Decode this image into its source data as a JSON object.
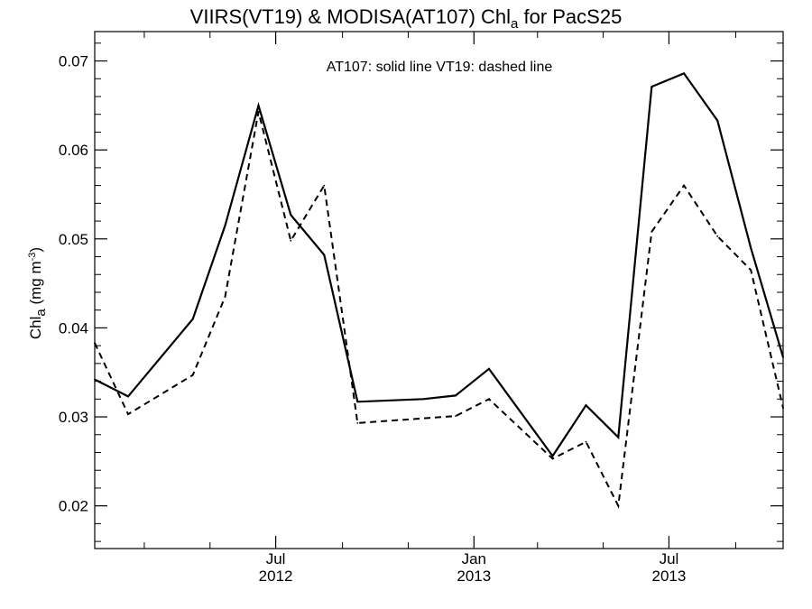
{
  "chart_data": {
    "type": "line",
    "title": "VIIRS(VT19) & MODISA(AT107)  Chl",
    "title_subscript": "a",
    "title_suffix": " for PacS25",
    "ylabel_main": "Chl",
    "ylabel_subscript": "a",
    "ylabel_units": " (mg m",
    "ylabel_superscript": "-3",
    "ylabel_close": ")",
    "annotation": "AT107: solid line   VT19: dashed line",
    "ylim": [
      0.0152,
      0.0733
    ],
    "yticks": [
      "0.02",
      "0.03",
      "0.04",
      "0.05",
      "0.06",
      "0.07"
    ],
    "xlim": [
      "2012-01-15",
      "2013-10-15"
    ],
    "xtick_labels": [
      {
        "date": "2012-07-01",
        "month": "Jul",
        "year": "2012"
      },
      {
        "date": "2013-01-01",
        "month": "Jan",
        "year": "2013"
      },
      {
        "date": "2013-07-01",
        "month": "Jul",
        "year": "2013"
      }
    ],
    "minor_ticks": [
      "2012-03-01",
      "2012-05-01",
      "2012-09-01",
      "2012-11-01",
      "2013-03-01",
      "2013-05-01",
      "2013-09-01"
    ],
    "grid": false,
    "series": [
      {
        "name": "AT107",
        "style": "solid",
        "color": "#000000",
        "points": [
          {
            "x": "2012-01-15",
            "y": 0.0342
          },
          {
            "x": "2012-02-15",
            "y": 0.0323
          },
          {
            "x": "2012-04-15",
            "y": 0.041
          },
          {
            "x": "2012-05-15",
            "y": 0.0515
          },
          {
            "x": "2012-06-15",
            "y": 0.065
          },
          {
            "x": "2012-07-15",
            "y": 0.0527
          },
          {
            "x": "2012-08-15",
            "y": 0.0482
          },
          {
            "x": "2012-09-15",
            "y": 0.0317
          },
          {
            "x": "2012-11-15",
            "y": 0.032
          },
          {
            "x": "2012-12-15",
            "y": 0.0324
          },
          {
            "x": "2013-01-15",
            "y": 0.0354
          },
          {
            "x": "2013-03-15",
            "y": 0.0256
          },
          {
            "x": "2013-04-15",
            "y": 0.0313
          },
          {
            "x": "2013-05-15",
            "y": 0.0277
          },
          {
            "x": "2013-06-15",
            "y": 0.0671
          },
          {
            "x": "2013-07-15",
            "y": 0.0686
          },
          {
            "x": "2013-08-15",
            "y": 0.0633
          },
          {
            "x": "2013-09-15",
            "y": 0.049
          },
          {
            "x": "2013-10-15",
            "y": 0.0367
          }
        ]
      },
      {
        "name": "VT19",
        "style": "dashed",
        "color": "#000000",
        "points": [
          {
            "x": "2012-01-15",
            "y": 0.0383
          },
          {
            "x": "2012-02-15",
            "y": 0.0303
          },
          {
            "x": "2012-04-15",
            "y": 0.0347
          },
          {
            "x": "2012-05-15",
            "y": 0.0435
          },
          {
            "x": "2012-06-15",
            "y": 0.0643
          },
          {
            "x": "2012-07-15",
            "y": 0.0498
          },
          {
            "x": "2012-08-15",
            "y": 0.056
          },
          {
            "x": "2012-09-15",
            "y": 0.0293
          },
          {
            "x": "2012-12-15",
            "y": 0.0301
          },
          {
            "x": "2013-01-15",
            "y": 0.032
          },
          {
            "x": "2013-03-15",
            "y": 0.0253
          },
          {
            "x": "2013-04-15",
            "y": 0.0272
          },
          {
            "x": "2013-05-15",
            "y": 0.02
          },
          {
            "x": "2013-06-15",
            "y": 0.0508
          },
          {
            "x": "2013-07-15",
            "y": 0.056
          },
          {
            "x": "2013-08-15",
            "y": 0.0503
          },
          {
            "x": "2013-09-15",
            "y": 0.0465
          },
          {
            "x": "2013-10-15",
            "y": 0.031
          }
        ]
      }
    ]
  }
}
